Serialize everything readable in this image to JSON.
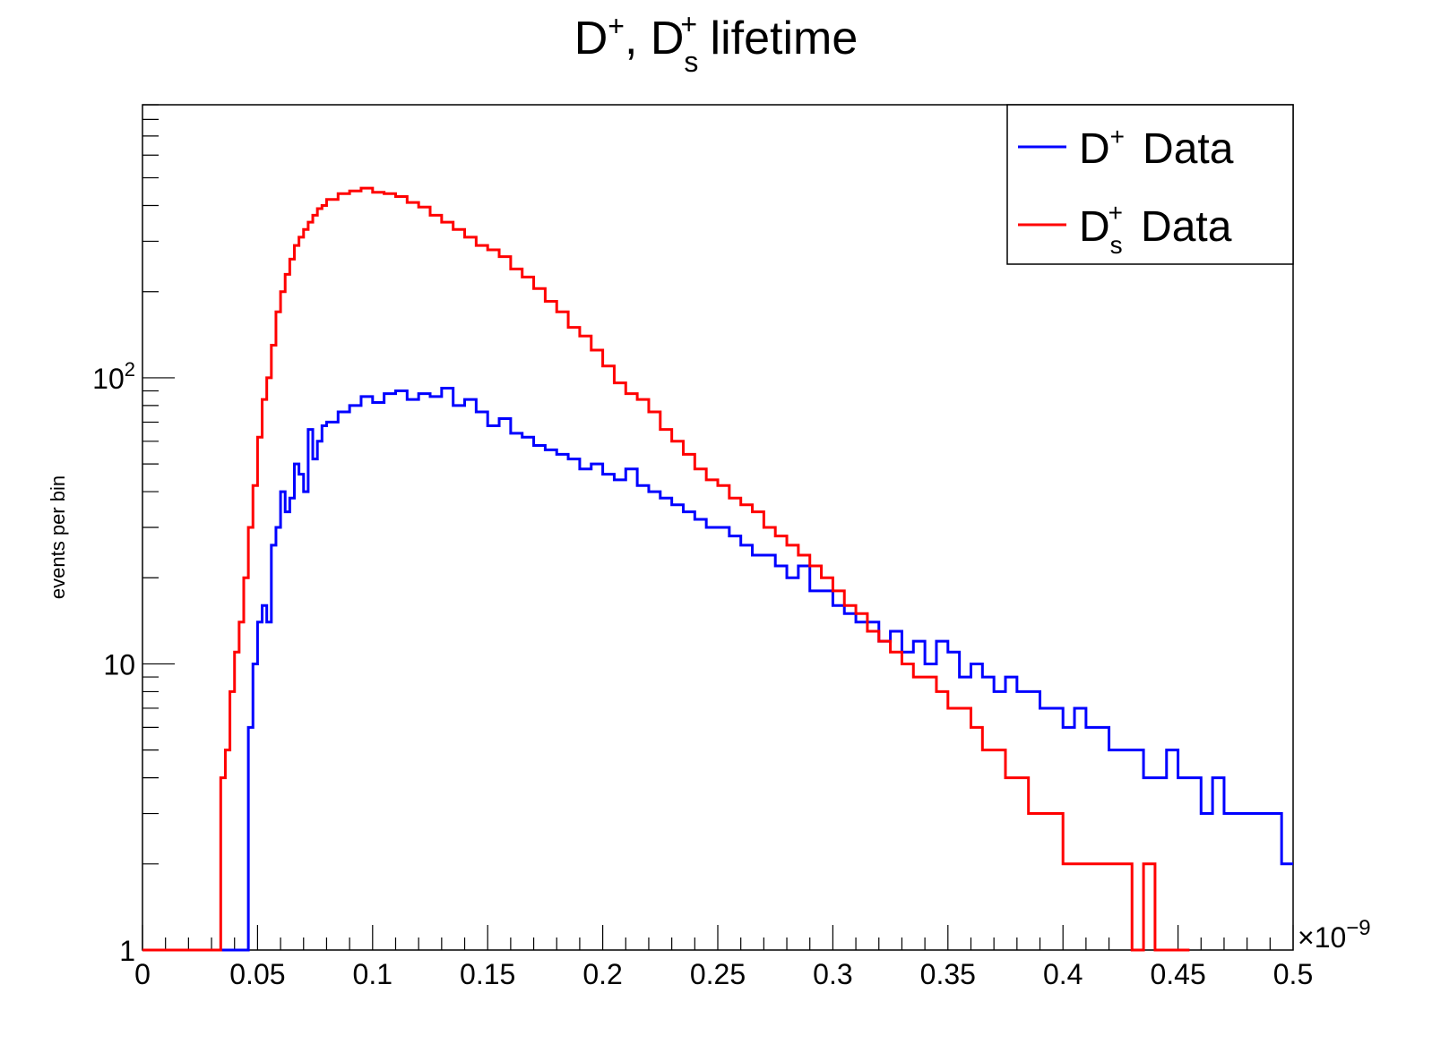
{
  "chart_data": {
    "type": "histogram",
    "title": {
      "main": "D",
      "sup1": "+",
      "sep": ", D",
      "sub2": "s",
      "sup2": "+",
      "rest": " lifetime"
    },
    "xlabel": "",
    "ylabel": "events per bin",
    "x_exponent_label": "×10",
    "x_exponent_power": "−9",
    "xlim": [
      0,
      0.5
    ],
    "ylim": [
      1,
      900
    ],
    "yscale": "log",
    "grid": false,
    "legend_position": "top-right",
    "x_ticks": [
      {
        "value": 0,
        "label": "0"
      },
      {
        "value": 0.05,
        "label": "0.05"
      },
      {
        "value": 0.1,
        "label": "0.1"
      },
      {
        "value": 0.15,
        "label": "0.15"
      },
      {
        "value": 0.2,
        "label": "0.2"
      },
      {
        "value": 0.25,
        "label": "0.25"
      },
      {
        "value": 0.3,
        "label": "0.3"
      },
      {
        "value": 0.35,
        "label": "0.35"
      },
      {
        "value": 0.4,
        "label": "0.4"
      },
      {
        "value": 0.45,
        "label": "0.45"
      },
      {
        "value": 0.5,
        "label": "0.5"
      }
    ],
    "y_ticks": [
      {
        "value": 1,
        "label": "1",
        "sup": ""
      },
      {
        "value": 10,
        "label": "10",
        "sup": ""
      },
      {
        "value": 100,
        "label": "10",
        "sup": "2"
      }
    ],
    "series": [
      {
        "name": "D",
        "name_sup": "+",
        "name_sub": "",
        "name_suffix": "Data",
        "color": "#0000ff",
        "x": [
          0.0,
          0.01,
          0.02,
          0.03,
          0.04,
          0.044,
          0.046,
          0.048,
          0.05,
          0.052,
          0.054,
          0.056,
          0.058,
          0.06,
          0.062,
          0.064,
          0.066,
          0.068,
          0.07,
          0.072,
          0.074,
          0.076,
          0.078,
          0.08,
          0.085,
          0.09,
          0.095,
          0.1,
          0.105,
          0.11,
          0.115,
          0.12,
          0.125,
          0.13,
          0.135,
          0.14,
          0.145,
          0.15,
          0.155,
          0.16,
          0.165,
          0.17,
          0.175,
          0.18,
          0.185,
          0.19,
          0.195,
          0.2,
          0.205,
          0.21,
          0.215,
          0.22,
          0.225,
          0.23,
          0.235,
          0.24,
          0.245,
          0.25,
          0.255,
          0.26,
          0.265,
          0.27,
          0.275,
          0.28,
          0.285,
          0.29,
          0.295,
          0.3,
          0.305,
          0.31,
          0.315,
          0.32,
          0.325,
          0.33,
          0.335,
          0.34,
          0.345,
          0.35,
          0.355,
          0.36,
          0.365,
          0.37,
          0.375,
          0.38,
          0.385,
          0.39,
          0.395,
          0.4,
          0.405,
          0.41,
          0.415,
          0.42,
          0.425,
          0.43,
          0.435,
          0.44,
          0.445,
          0.45,
          0.455,
          0.46,
          0.465,
          0.47,
          0.475,
          0.48,
          0.485,
          0.49,
          0.495,
          0.5
        ],
        "y": [
          1,
          1,
          1,
          1,
          1,
          1,
          6,
          10,
          14,
          16,
          14,
          26,
          30,
          40,
          34,
          38,
          50,
          46,
          40,
          66,
          52,
          60,
          68,
          70,
          76,
          80,
          86,
          82,
          88,
          90,
          84,
          88,
          86,
          92,
          80,
          84,
          76,
          68,
          72,
          64,
          62,
          58,
          56,
          54,
          52,
          48,
          50,
          46,
          44,
          48,
          42,
          40,
          38,
          36,
          34,
          32,
          30,
          30,
          28,
          26,
          24,
          24,
          22,
          20,
          22,
          18,
          18,
          16,
          15,
          14,
          14,
          12,
          13,
          11,
          12,
          10,
          12,
          11,
          9,
          10,
          9,
          8,
          9,
          8,
          8,
          7,
          7,
          6,
          7,
          6,
          6,
          5,
          5,
          5,
          4,
          4,
          5,
          4,
          4,
          3,
          4,
          3,
          3,
          3,
          3,
          3,
          2,
          2
        ]
      },
      {
        "name": "D",
        "name_sup": "+",
        "name_sub": "s",
        "name_suffix": "Data",
        "color": "#ff0000",
        "x": [
          0.0,
          0.01,
          0.02,
          0.03,
          0.032,
          0.034,
          0.036,
          0.038,
          0.04,
          0.042,
          0.044,
          0.046,
          0.048,
          0.05,
          0.052,
          0.054,
          0.056,
          0.058,
          0.06,
          0.062,
          0.064,
          0.066,
          0.068,
          0.07,
          0.072,
          0.074,
          0.076,
          0.078,
          0.08,
          0.085,
          0.09,
          0.095,
          0.1,
          0.105,
          0.11,
          0.115,
          0.12,
          0.125,
          0.13,
          0.135,
          0.14,
          0.145,
          0.15,
          0.155,
          0.16,
          0.165,
          0.17,
          0.175,
          0.18,
          0.185,
          0.19,
          0.195,
          0.2,
          0.205,
          0.21,
          0.215,
          0.22,
          0.225,
          0.23,
          0.235,
          0.24,
          0.245,
          0.25,
          0.255,
          0.26,
          0.265,
          0.27,
          0.275,
          0.28,
          0.285,
          0.29,
          0.295,
          0.3,
          0.305,
          0.31,
          0.315,
          0.32,
          0.325,
          0.33,
          0.335,
          0.34,
          0.345,
          0.35,
          0.355,
          0.36,
          0.365,
          0.37,
          0.375,
          0.38,
          0.385,
          0.39,
          0.395,
          0.4,
          0.405,
          0.41,
          0.415,
          0.42,
          0.425,
          0.43,
          0.435,
          0.44,
          0.445,
          0.45
        ],
        "y": [
          1,
          1,
          1,
          1,
          1,
          4,
          5,
          8,
          11,
          14,
          20,
          30,
          42,
          62,
          84,
          100,
          130,
          170,
          200,
          230,
          260,
          290,
          310,
          330,
          350,
          370,
          390,
          400,
          420,
          440,
          450,
          460,
          445,
          440,
          430,
          410,
          395,
          370,
          350,
          330,
          310,
          290,
          280,
          265,
          240,
          225,
          205,
          185,
          170,
          150,
          140,
          125,
          110,
          96,
          88,
          84,
          76,
          66,
          60,
          54,
          48,
          44,
          42,
          38,
          36,
          34,
          30,
          28,
          26,
          24,
          22,
          20,
          18,
          16,
          15,
          13,
          12,
          11,
          10,
          9,
          9,
          8,
          7,
          7,
          6,
          5,
          5,
          4,
          4,
          3,
          3,
          3,
          2,
          2,
          2,
          2,
          2,
          2,
          1,
          2,
          1,
          1,
          1
        ]
      }
    ]
  }
}
